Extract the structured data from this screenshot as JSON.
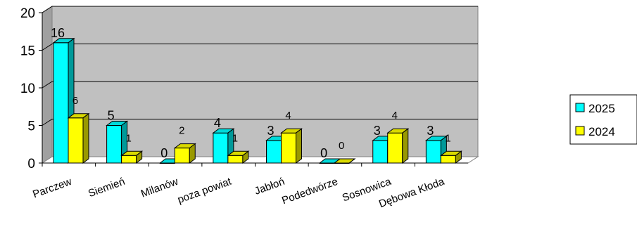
{
  "chart_data": {
    "type": "bar",
    "categories": [
      "Parczew",
      "Siemień",
      "Milanów",
      "poza powiat",
      "Jabłoń",
      "Podedwórze",
      "Sosnowica",
      "Dębowa Kłoda"
    ],
    "series": [
      {
        "name": "2025",
        "values": [
          16,
          5,
          0,
          4,
          3,
          0,
          3,
          3
        ],
        "color": "#00ffff"
      },
      {
        "name": "2024",
        "values": [
          6,
          1,
          2,
          1,
          4,
          0,
          4,
          1
        ],
        "color": "#ffff00"
      }
    ],
    "ylim": [
      0,
      20
    ],
    "yticks": [
      "0",
      "5",
      "10",
      "15",
      "20"
    ],
    "grid": true,
    "legend": "right",
    "plot_background": "#c0c0c0"
  }
}
